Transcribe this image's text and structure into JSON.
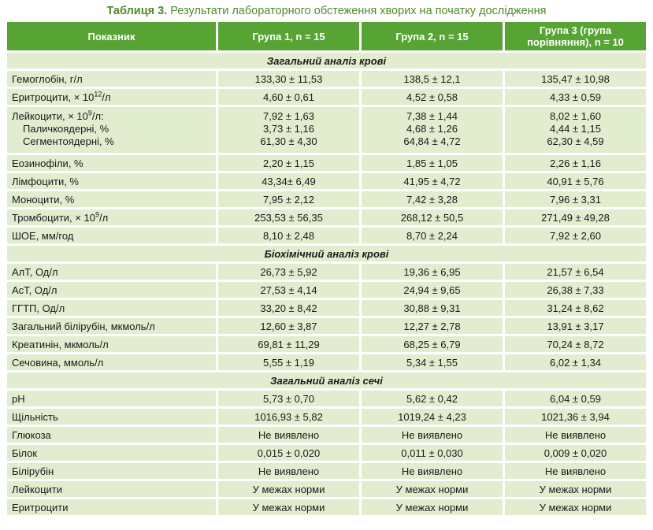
{
  "caption": {
    "label": "Таблиця 3.",
    "title": "Результати лабораторного обстеження хворих на початку дослідження"
  },
  "headers": [
    "Показник",
    "Група 1, n = 15",
    "Група 2, n = 15",
    "Група 3 (група порівняння), n = 10"
  ],
  "sections": [
    {
      "title": "Загальний аналіз крові",
      "rows": [
        {
          "name": "Гемоглобін, г/л",
          "v1": "133,30 ± 11,53",
          "v2": "138,5 ± 12,1",
          "v3": "135,47 ± 10,98"
        },
        {
          "name_pre": "Еритроцити, × 10",
          "name_sup": "12",
          "name_post": "/л",
          "v1": "4,60 ± 0,61",
          "v2": "4,52 ± 0,58",
          "v3": "4,33 ± 0,59"
        },
        {
          "name_pre": "Лейкоцити, × 10",
          "name_sup": "9",
          "name_post": "/л:",
          "v1": "7,92 ± 1,63",
          "v2": "7,38 ± 1,44",
          "v3": "8,02 ± 1,60",
          "subs": [
            {
              "name": "Паличкоядерні, %",
              "v1": "3,73 ± 1,16",
              "v2": "4,68 ± 1,26",
              "v3": "4,44 ± 1,15"
            },
            {
              "name": "Сегментоядерні, %",
              "v1": "61,30 ± 4,30",
              "v2": "64,84 ± 4,72",
              "v3": "62,30 ± 4,59"
            }
          ]
        },
        {
          "name": "Еозинофіли, %",
          "v1": "2,20 ± 1,15",
          "v2": "1,85 ± 1,05",
          "v3": "2,26 ± 1,16"
        },
        {
          "name": "Лімфоцити, %",
          "v1": "43,34± 6,49",
          "v2": "41,95 ± 4,72",
          "v3": "40,91 ± 5,76"
        },
        {
          "name": "Моноцити, %",
          "v1": "7,95 ± 2,12",
          "v2": "7,42 ± 3,28",
          "v3": "7,96 ± 3,31"
        },
        {
          "name_pre": "Тромбоцити, × 10",
          "name_sup": "9",
          "name_post": "/л",
          "v1": "253,53 ± 56,35",
          "v2": "268,12 ± 50,5",
          "v3": "271,49 ± 49,28"
        },
        {
          "name": "ШОЕ, мм/год",
          "v1": "8,10 ± 2,48",
          "v2": "8,70 ± 2,24",
          "v3": "7,92 ± 2,60"
        }
      ]
    },
    {
      "title": "Біохімічний аналіз крові",
      "rows": [
        {
          "name": "АлТ, Од/л",
          "v1": "26,73 ± 5,92",
          "v2": "19,36 ± 6,95",
          "v3": "21,57 ± 6,54"
        },
        {
          "name": "АсТ, Од/л",
          "v1": "27,53 ± 4,14",
          "v2": "24,94 ± 9,65",
          "v3": "26,38 ± 7,33"
        },
        {
          "name": "ГГТП, Од/л",
          "v1": "33,20 ± 8,42",
          "v2": "30,88 ± 9,31",
          "v3": "31,24 ± 8,62"
        },
        {
          "name": "Загальний білірубін, мкмоль/л",
          "v1": "12,60 ± 3,87",
          "v2": "12,27 ± 2,78",
          "v3": "13,91 ± 3,17"
        },
        {
          "name": "Креатинін, мкмоль/л",
          "v1": "69,81 ± 11,29",
          "v2": "68,25 ± 6,79",
          "v3": "70,24 ± 8,72"
        },
        {
          "name": "Сечовина, ммоль/л",
          "v1": "5,55 ± 1,19",
          "v2": "5,34 ± 1,55",
          "v3": "6,02 ± 1,34"
        }
      ]
    },
    {
      "title": "Загальний аналіз сечі",
      "rows": [
        {
          "name": "pH",
          "v1": "5,73 ± 0,70",
          "v2": "5,62 ± 0,42",
          "v3": "6,04 ± 0,59"
        },
        {
          "name": "Щільність",
          "v1": "1016,93 ± 5,82",
          "v2": "1019,24 ± 4,23",
          "v3": "1021,36 ± 3,94"
        },
        {
          "name": "Глюкоза",
          "v1": "Не виявлено",
          "v2": "Не виявлено",
          "v3": "Не виявлено"
        },
        {
          "name": "Білок",
          "v1": "0,015 ± 0,020",
          "v2": "0,011 ± 0,030",
          "v3": "0,009 ± 0,020"
        },
        {
          "name": "Білірубін",
          "v1": "Не виявлено",
          "v2": "Не виявлено",
          "v3": "Не виявлено"
        },
        {
          "name": "Лейкоцити",
          "v1": "У межах норми",
          "v2": "У межах норми",
          "v3": "У межах норми"
        },
        {
          "name": "Еритроцити",
          "v1": "У межах норми",
          "v2": "У межах норми",
          "v3": "У межах норми"
        }
      ]
    }
  ]
}
